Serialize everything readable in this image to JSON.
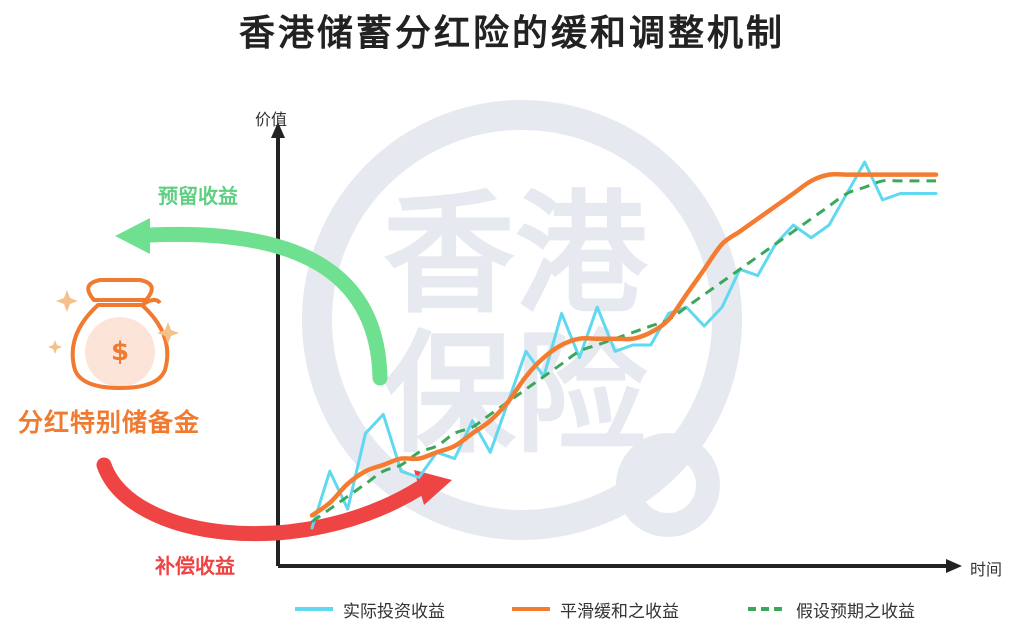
{
  "title": "香港储蓄分红险的缓和调整机制",
  "watermark": {
    "line1": "香港",
    "line2": "保险",
    "color": "#e6e9f0"
  },
  "labels": {
    "retain": "预留收益",
    "compensate": "补偿收益",
    "reserve": "分红特别储备金"
  },
  "icons": {
    "money_bag": "money-bag-icon",
    "sparkle": "sparkle-icon"
  },
  "colors": {
    "actual": "#5fd8f0",
    "smoothed": "#f47c30",
    "assumed": "#3aa85a",
    "retain_arrow": "#6ee08f",
    "compensate_arrow": "#ef4444"
  },
  "chart_data": {
    "type": "line",
    "ylabel": "价值",
    "xlabel": "时间",
    "grid": false,
    "legend_position": "bottom",
    "x": [
      0,
      1,
      2,
      3,
      4,
      5,
      6,
      7,
      8,
      9,
      10,
      11,
      12,
      13,
      14,
      15,
      16,
      17,
      18,
      19,
      20,
      21,
      22,
      23,
      24,
      25,
      26,
      27,
      28,
      29,
      30,
      31,
      32,
      33,
      34,
      35
    ],
    "series": [
      {
        "name": "实际投资收益",
        "style": "solid",
        "color": "#5fd8f0",
        "values": [
          10,
          19,
          13,
          25,
          28,
          19,
          18,
          22,
          21,
          27,
          22,
          30,
          38,
          34,
          44,
          37,
          45,
          38,
          39,
          39,
          44,
          45,
          42,
          45,
          51,
          50,
          55,
          58,
          56,
          58,
          63,
          68,
          62,
          63,
          63,
          63
        ]
      },
      {
        "name": "平滑缓和之收益",
        "style": "solid",
        "color": "#f47c30",
        "values": [
          12,
          14,
          17,
          19,
          20,
          21,
          21,
          22,
          23,
          25,
          27,
          30,
          34,
          37,
          39,
          40,
          40,
          40,
          40,
          41,
          43,
          47,
          51,
          55,
          57,
          59,
          61,
          63,
          65,
          66,
          66,
          66,
          66,
          66,
          66,
          66
        ]
      },
      {
        "name": "假设预期之收益",
        "style": "dashed",
        "color": "#3aa85a",
        "values": [
          11,
          13,
          15,
          17,
          19,
          20,
          22,
          23,
          25,
          26,
          28,
          30,
          32,
          34,
          36,
          38,
          39,
          40,
          41,
          42,
          43,
          45,
          47,
          49,
          51,
          53,
          55,
          57,
          59,
          61,
          63,
          64,
          65,
          65,
          65,
          65
        ]
      }
    ]
  }
}
